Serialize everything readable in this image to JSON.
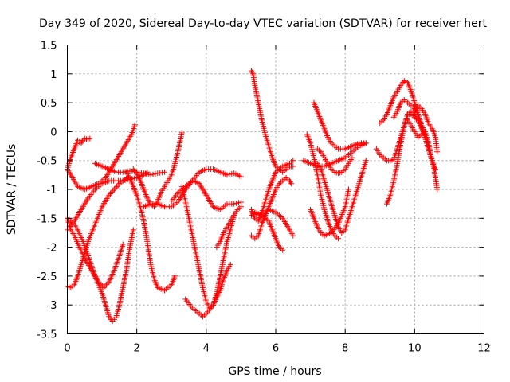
{
  "chart_data": {
    "type": "scatter",
    "title": "Day 349 of 2020, Sidereal Day-to-day VTEC variation (SDTVAR) for receiver hert",
    "xlabel": "GPS time / hours",
    "ylabel": "SDTVAR / TECUs",
    "xlim": [
      0,
      12
    ],
    "ylim": [
      -3.5,
      1.5
    ],
    "xticks": [
      "0",
      "2",
      "4",
      "6",
      "8",
      "10",
      "12"
    ],
    "yticks": [
      "-3.5",
      "-3",
      "-2.5",
      "-2",
      "-1.5",
      "-1",
      "-0.5",
      "0",
      "0.5",
      "1",
      "1.5"
    ],
    "grid": true,
    "marker": "plus",
    "color": "#ff0000",
    "series": [
      {
        "x": [
          0.0,
          0.1,
          0.2,
          0.3,
          0.35,
          0.4,
          0.45,
          0.5,
          0.55,
          0.65
        ],
        "y": [
          -0.65,
          -0.45,
          -0.3,
          -0.15,
          -0.18,
          -0.2,
          -0.15,
          -0.12,
          -0.13,
          -0.12
        ]
      },
      {
        "x": [
          0.0,
          0.15,
          0.3,
          0.5,
          0.7,
          0.9,
          1.1,
          1.3,
          1.5,
          1.7,
          1.85,
          1.95
        ],
        "y": [
          -0.65,
          -0.8,
          -0.95,
          -1.0,
          -0.95,
          -0.9,
          -0.8,
          -0.6,
          -0.4,
          -0.2,
          -0.05,
          0.12
        ]
      },
      {
        "x": [
          0.0,
          0.1,
          0.2,
          0.3,
          0.45,
          0.6,
          0.8,
          1.0,
          1.2,
          1.3,
          1.4,
          1.5,
          1.6,
          1.7,
          1.8,
          1.9
        ],
        "y": [
          -1.5,
          -1.55,
          -1.6,
          -1.7,
          -1.9,
          -2.15,
          -2.5,
          -2.8,
          -3.2,
          -3.28,
          -3.22,
          -3.0,
          -2.7,
          -2.4,
          -2.0,
          -1.7
        ]
      },
      {
        "x": [
          0.0,
          0.1,
          0.2,
          0.3,
          0.45,
          0.6,
          0.8,
          1.0,
          1.2,
          1.35,
          1.5,
          1.6,
          1.7,
          1.75
        ],
        "y": [
          -2.68,
          -2.7,
          -2.65,
          -2.5,
          -2.2,
          -1.9,
          -1.6,
          -1.3,
          -1.1,
          -1.0,
          -0.9,
          -0.85,
          -0.82,
          -0.8
        ]
      },
      {
        "x": [
          0.0,
          0.2,
          0.4,
          0.6,
          0.8,
          1.0,
          1.2,
          1.4,
          1.6,
          1.8,
          2.0,
          2.2,
          2.3
        ],
        "y": [
          -1.7,
          -1.55,
          -1.35,
          -1.15,
          -1.0,
          -0.9,
          -0.85,
          -0.85,
          -0.85,
          -0.82,
          -0.8,
          -0.75,
          -0.7
        ]
      },
      {
        "x": [
          0.0,
          0.1,
          0.2,
          0.35,
          0.5,
          0.7,
          0.9,
          1.05,
          1.2,
          1.35,
          1.5,
          1.6
        ],
        "y": [
          -1.5,
          -1.7,
          -1.8,
          -2.0,
          -2.2,
          -2.4,
          -2.6,
          -2.7,
          -2.6,
          -2.4,
          -2.15,
          -1.95
        ]
      },
      {
        "x": [
          0.8,
          1.0,
          1.2,
          1.4,
          1.6,
          1.8,
          2.0,
          2.2,
          2.4,
          2.6,
          2.8
        ],
        "y": [
          -0.55,
          -0.6,
          -0.65,
          -0.7,
          -0.7,
          -0.68,
          -0.7,
          -0.72,
          -0.75,
          -0.72,
          -0.7
        ]
      },
      {
        "x": [
          1.7,
          1.8,
          1.9,
          2.0,
          2.1,
          2.2,
          2.3,
          2.4,
          2.5,
          2.6,
          2.8,
          3.0,
          3.1
        ],
        "y": [
          -0.7,
          -0.8,
          -0.95,
          -1.1,
          -1.3,
          -1.55,
          -1.9,
          -2.3,
          -2.55,
          -2.7,
          -2.75,
          -2.65,
          -2.5
        ]
      },
      {
        "x": [
          1.9,
          2.0,
          2.1,
          2.2,
          2.3,
          2.4,
          2.5,
          2.6,
          2.7,
          2.8,
          2.9,
          3.0,
          3.1,
          3.2,
          3.3
        ],
        "y": [
          -0.65,
          -0.72,
          -0.85,
          -1.0,
          -1.15,
          -1.25,
          -1.3,
          -1.2,
          -1.05,
          -0.95,
          -0.85,
          -0.75,
          -0.55,
          -0.3,
          -0.02
        ]
      },
      {
        "x": [
          2.2,
          2.4,
          2.6,
          2.8,
          3.0,
          3.2,
          3.4,
          3.6,
          3.8,
          4.0,
          4.2,
          4.4,
          4.6,
          4.8,
          5.0
        ],
        "y": [
          -1.3,
          -1.25,
          -1.25,
          -1.3,
          -1.3,
          -1.2,
          -1.0,
          -0.85,
          -0.7,
          -0.65,
          -0.65,
          -0.7,
          -0.75,
          -0.72,
          -0.78
        ]
      },
      {
        "x": [
          3.0,
          3.2,
          3.4,
          3.6,
          3.8,
          4.0,
          4.2,
          4.4,
          4.6,
          4.8,
          5.0
        ],
        "y": [
          -1.2,
          -1.05,
          -0.95,
          -0.85,
          -0.9,
          -1.1,
          -1.3,
          -1.35,
          -1.25,
          -1.25,
          -1.22
        ]
      },
      {
        "x": [
          3.3,
          3.4,
          3.5,
          3.6,
          3.7,
          3.8,
          3.9,
          4.0,
          4.1,
          4.2,
          4.3,
          4.4,
          4.5,
          4.6,
          4.7,
          4.8
        ],
        "y": [
          -0.95,
          -1.2,
          -1.5,
          -1.8,
          -2.1,
          -2.4,
          -2.7,
          -2.95,
          -3.05,
          -3.0,
          -2.8,
          -2.5,
          -2.2,
          -1.9,
          -1.7,
          -1.45
        ]
      },
      {
        "x": [
          3.4,
          3.6,
          3.8,
          3.9,
          4.0,
          4.2,
          4.4,
          4.5,
          4.6,
          4.7
        ],
        "y": [
          -2.9,
          -3.05,
          -3.15,
          -3.2,
          -3.15,
          -3.0,
          -2.75,
          -2.55,
          -2.4,
          -2.3
        ]
      },
      {
        "x": [
          4.3,
          4.4,
          4.5,
          4.6,
          4.7,
          4.8,
          4.9,
          5.0
        ],
        "y": [
          -2.0,
          -1.9,
          -1.75,
          -1.65,
          -1.55,
          -1.45,
          -1.35,
          -1.3
        ]
      },
      {
        "x": [
          5.3,
          5.35,
          5.4,
          5.5,
          5.6,
          5.7,
          5.8,
          5.9,
          6.0,
          6.1,
          6.2,
          6.3,
          6.4,
          6.5
        ],
        "y": [
          1.05,
          1.0,
          0.8,
          0.5,
          0.2,
          -0.05,
          -0.25,
          -0.45,
          -0.6,
          -0.65,
          -0.7,
          -0.65,
          -0.6,
          -0.6
        ]
      },
      {
        "x": [
          5.3,
          5.4,
          5.5,
          5.6,
          5.7,
          5.8,
          5.9,
          6.0,
          6.2,
          6.4,
          6.5
        ],
        "y": [
          -1.35,
          -1.5,
          -1.55,
          -1.4,
          -1.2,
          -1.0,
          -0.85,
          -0.7,
          -0.6,
          -0.55,
          -0.5
        ]
      },
      {
        "x": [
          5.3,
          5.4,
          5.6,
          5.8,
          5.9,
          6.0,
          6.1,
          6.2
        ],
        "y": [
          -1.45,
          -1.4,
          -1.45,
          -1.55,
          -1.7,
          -1.85,
          -2.0,
          -2.05
        ]
      },
      {
        "x": [
          5.4,
          5.6,
          5.8,
          6.0,
          6.2,
          6.4,
          6.5
        ],
        "y": [
          -1.4,
          -1.45,
          -1.35,
          -1.4,
          -1.5,
          -1.7,
          -1.8
        ]
      },
      {
        "x": [
          5.3,
          5.4,
          5.5,
          5.6,
          5.7,
          5.8,
          5.9,
          6.0,
          6.1,
          6.2,
          6.3,
          6.4,
          6.45
        ],
        "y": [
          -1.8,
          -1.85,
          -1.8,
          -1.6,
          -1.45,
          -1.3,
          -1.15,
          -1.0,
          -0.9,
          -0.85,
          -0.8,
          -0.85,
          -0.9
        ]
      },
      {
        "x": [
          6.9,
          7.0,
          7.1,
          7.2,
          7.3,
          7.4,
          7.5,
          7.6,
          7.7,
          7.8
        ],
        "y": [
          -0.05,
          -0.2,
          -0.45,
          -0.75,
          -1.1,
          -1.35,
          -1.55,
          -1.7,
          -1.8,
          -1.85
        ]
      },
      {
        "x": [
          7.1,
          7.2,
          7.3,
          7.4,
          7.5,
          7.6,
          7.8,
          8.0,
          8.2,
          8.4,
          8.6
        ],
        "y": [
          0.5,
          0.35,
          0.2,
          0.05,
          -0.1,
          -0.2,
          -0.3,
          -0.3,
          -0.25,
          -0.2,
          -0.2
        ]
      },
      {
        "x": [
          6.8,
          7.0,
          7.2,
          7.4,
          7.6,
          7.8,
          8.0,
          8.2,
          8.4,
          8.6
        ],
        "y": [
          -0.5,
          -0.55,
          -0.6,
          -0.6,
          -0.55,
          -0.5,
          -0.45,
          -0.35,
          -0.25,
          -0.2
        ]
      },
      {
        "x": [
          7.0,
          7.1,
          7.2,
          7.3,
          7.4,
          7.6,
          7.8,
          8.0,
          8.1
        ],
        "y": [
          -1.35,
          -1.5,
          -1.65,
          -1.75,
          -1.8,
          -1.75,
          -1.6,
          -1.3,
          -1.0
        ]
      },
      {
        "x": [
          7.2,
          7.3,
          7.4,
          7.5,
          7.6,
          7.7,
          7.8,
          7.9,
          8.0,
          8.1,
          8.2,
          8.3,
          8.4,
          8.5,
          8.6
        ],
        "y": [
          -0.55,
          -0.65,
          -0.85,
          -1.05,
          -1.25,
          -1.45,
          -1.65,
          -1.75,
          -1.7,
          -1.5,
          -1.3,
          -1.1,
          -0.9,
          -0.7,
          -0.5
        ]
      },
      {
        "x": [
          7.2,
          7.3,
          7.4,
          7.5,
          7.6,
          7.7,
          7.8,
          7.9,
          8.0,
          8.1,
          8.2
        ],
        "y": [
          -0.3,
          -0.35,
          -0.45,
          -0.55,
          -0.65,
          -0.7,
          -0.72,
          -0.7,
          -0.65,
          -0.55,
          -0.45
        ]
      },
      {
        "x": [
          8.9,
          9.0,
          9.1,
          9.2,
          9.3,
          9.4,
          9.5,
          9.6,
          9.7,
          9.8,
          9.9,
          10.0,
          10.1,
          10.2,
          10.3
        ],
        "y": [
          -0.3,
          -0.4,
          -0.45,
          -0.5,
          -0.5,
          -0.48,
          -0.3,
          -0.1,
          0.1,
          0.3,
          0.3,
          0.25,
          0.2,
          0.1,
          0.0
        ]
      },
      {
        "x": [
          9.0,
          9.1,
          9.2,
          9.3,
          9.4,
          9.5,
          9.6,
          9.7,
          9.8,
          9.9,
          10.0,
          10.1,
          10.2,
          10.3,
          10.4,
          10.5
        ],
        "y": [
          0.15,
          0.2,
          0.3,
          0.45,
          0.6,
          0.7,
          0.8,
          0.88,
          0.85,
          0.7,
          0.5,
          0.3,
          0.1,
          -0.1,
          -0.3,
          -0.5
        ]
      },
      {
        "x": [
          9.2,
          9.3,
          9.4,
          9.5,
          9.6,
          9.7,
          9.8,
          9.9,
          10.0,
          10.1,
          10.2,
          10.3
        ],
        "y": [
          -1.25,
          -1.1,
          -0.85,
          -0.55,
          -0.2,
          0.1,
          0.3,
          0.35,
          0.3,
          0.2,
          0.05,
          -0.05
        ]
      },
      {
        "x": [
          9.4,
          9.5,
          9.6,
          9.7,
          9.8,
          9.9,
          10.0,
          10.1,
          10.2,
          10.3,
          10.4,
          10.5,
          10.6
        ],
        "y": [
          0.25,
          0.35,
          0.5,
          0.55,
          0.5,
          0.45,
          0.4,
          0.3,
          0.1,
          -0.1,
          -0.3,
          -0.5,
          -0.65
        ]
      },
      {
        "x": [
          9.8,
          9.9,
          10.0,
          10.1,
          10.2,
          10.3,
          10.4,
          10.5,
          10.55,
          10.6,
          10.65
        ],
        "y": [
          0.2,
          0.1,
          0.0,
          -0.1,
          -0.05,
          0.0,
          -0.2,
          -0.5,
          -0.6,
          -0.8,
          -1.0
        ]
      },
      {
        "x": [
          10.0,
          10.1,
          10.2,
          10.3,
          10.4,
          10.5,
          10.55,
          10.6,
          10.65
        ],
        "y": [
          0.35,
          0.45,
          0.4,
          0.3,
          0.15,
          0.05,
          0.0,
          -0.1,
          -0.35
        ]
      }
    ]
  }
}
